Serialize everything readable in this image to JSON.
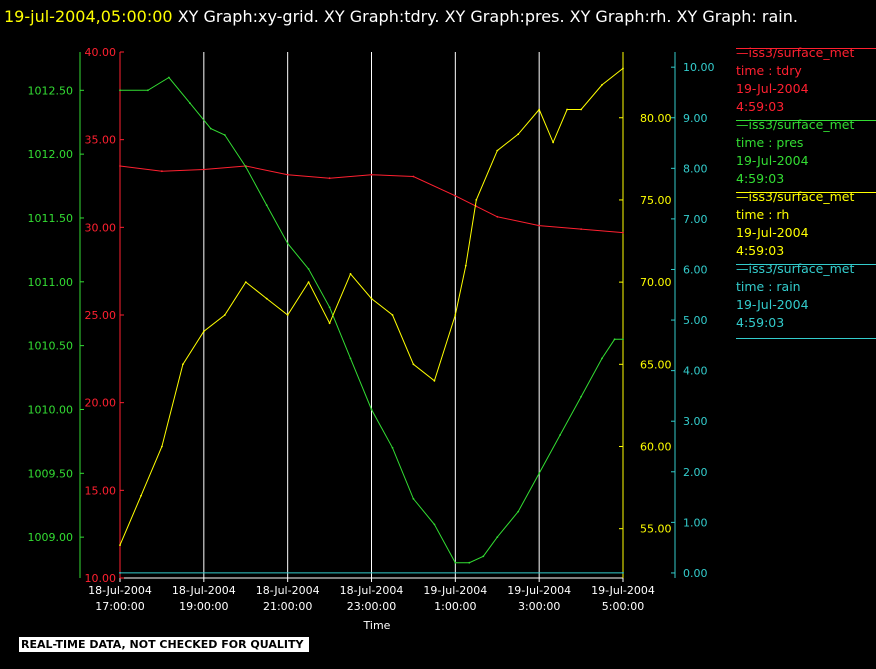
{
  "header": {
    "timestamp": "19-jul-2004,05:00:00",
    "titles": "XY Graph:xy-grid.  XY Graph:tdry.  XY Graph:pres.  XY Graph:rh.  XY Graph: rain."
  },
  "footer": {
    "note": "REAL-TIME DATA, NOT CHECKED FOR QUALITY"
  },
  "colors": {
    "tdry": "#ff2030",
    "pres": "#33dd33",
    "rh": "#ffff00",
    "rain": "#33cccc",
    "grid": "#ffffff"
  },
  "legend": [
    {
      "name": "iss3/surface_met",
      "var": "time : tdry",
      "date": "19-Jul-2004",
      "time": "4:59:03",
      "color": "#ff2030"
    },
    {
      "name": "iss3/surface_met",
      "var": "time : pres",
      "date": "19-Jul-2004",
      "time": "4:59:03",
      "color": "#33dd33"
    },
    {
      "name": "iss3/surface_met",
      "var": "time : rh",
      "date": "19-Jul-2004",
      "time": "4:59:03",
      "color": "#ffff00"
    },
    {
      "name": "iss3/surface_met",
      "var": "time : rain",
      "date": "19-Jul-2004",
      "time": "4:59:03",
      "color": "#33cccc"
    }
  ],
  "chart_data": {
    "type": "line",
    "xlabel": "Time",
    "x_range": [
      "18-Jul-2004 17:00:00",
      "19-Jul-2004 05:00:00"
    ],
    "x_ticks": [
      {
        "date": "18-Jul-2004",
        "time": "17:00:00"
      },
      {
        "date": "18-Jul-2004",
        "time": "19:00:00"
      },
      {
        "date": "18-Jul-2004",
        "time": "21:00:00"
      },
      {
        "date": "18-Jul-2004",
        "time": "23:00:00"
      },
      {
        "date": "19-Jul-2004",
        "time": "1:00:00"
      },
      {
        "date": "19-Jul-2004",
        "time": "3:00:00"
      },
      {
        "date": "19-Jul-2004",
        "time": "5:00:00"
      }
    ],
    "grid": true,
    "axes": {
      "tdry": {
        "range": [
          10,
          40
        ],
        "ticks": [
          "10.00",
          "15.00",
          "20.00",
          "25.00",
          "30.00",
          "35.00",
          "40.00"
        ]
      },
      "pres": {
        "range": [
          1008.68,
          1012.8
        ],
        "ticks": [
          "1009.00",
          "1009.50",
          "1010.00",
          "1010.50",
          "1011.00",
          "1011.50",
          "1012.00",
          "1012.50"
        ]
      },
      "rh": {
        "range": [
          52,
          84
        ],
        "ticks": [
          "55.00",
          "60.00",
          "65.00",
          "70.00",
          "75.00",
          "80.00"
        ]
      },
      "rain": {
        "range": [
          -0.1,
          10.3
        ],
        "ticks": [
          "0.00",
          "1.00",
          "2.00",
          "3.00",
          "4.00",
          "5.00",
          "6.00",
          "7.00",
          "8.00",
          "9.00",
          "10.00"
        ]
      }
    },
    "series": [
      {
        "name": "iss3/surface_met time : tdry",
        "key": "tdry",
        "x": [
          "17:00",
          "18:00",
          "19:00",
          "20:00",
          "21:00",
          "22:00",
          "23:00",
          "0:00",
          "1:00",
          "1:30",
          "2:00",
          "3:00",
          "4:00",
          "5:00"
        ],
        "y": [
          33.5,
          33.2,
          33.3,
          33.5,
          33.0,
          32.8,
          33.0,
          32.9,
          31.8,
          31.2,
          30.6,
          30.1,
          29.9,
          29.7
        ]
      },
      {
        "name": "iss3/surface_met time : pres",
        "key": "pres",
        "x": [
          "17:00",
          "17:40",
          "18:10",
          "18:40",
          "19:10",
          "19:30",
          "20:00",
          "20:30",
          "21:00",
          "21:30",
          "22:00",
          "22:30",
          "23:00",
          "23:30",
          "0:00",
          "0:30",
          "1:00",
          "1:20",
          "1:40",
          "2:00",
          "2:30",
          "3:00",
          "3:30",
          "4:00",
          "4:30",
          "4:48",
          "5:00"
        ],
        "y": [
          1012.5,
          1012.5,
          1012.6,
          1012.4,
          1012.2,
          1012.15,
          1011.9,
          1011.6,
          1011.3,
          1011.1,
          1010.8,
          1010.4,
          1010.0,
          1009.7,
          1009.3,
          1009.1,
          1008.8,
          1008.8,
          1008.85,
          1009.0,
          1009.2,
          1009.5,
          1009.8,
          1010.1,
          1010.4,
          1010.55,
          1010.55
        ]
      },
      {
        "name": "iss3/surface_met time : rh",
        "key": "rh",
        "x": [
          "17:00",
          "17:30",
          "18:00",
          "18:30",
          "19:00",
          "19:30",
          "20:00",
          "20:30",
          "21:00",
          "21:30",
          "22:00",
          "22:30",
          "23:00",
          "23:30",
          "0:00",
          "0:30",
          "1:00",
          "1:15",
          "1:30",
          "2:00",
          "2:30",
          "3:00",
          "3:20",
          "3:40",
          "4:00",
          "4:30",
          "5:00"
        ],
        "y": [
          54.0,
          57.0,
          60.0,
          65.0,
          67.0,
          68.0,
          70.0,
          69.0,
          68.0,
          70.0,
          67.5,
          70.5,
          69.0,
          68.0,
          65.0,
          64.0,
          68.0,
          71.0,
          75.0,
          78.0,
          79.0,
          80.5,
          78.5,
          80.5,
          80.5,
          82.0,
          83.0
        ]
      },
      {
        "name": "iss3/surface_met time : rain",
        "key": "rain",
        "x": [
          "17:00",
          "5:00"
        ],
        "y": [
          0.0,
          0.0
        ]
      }
    ]
  }
}
